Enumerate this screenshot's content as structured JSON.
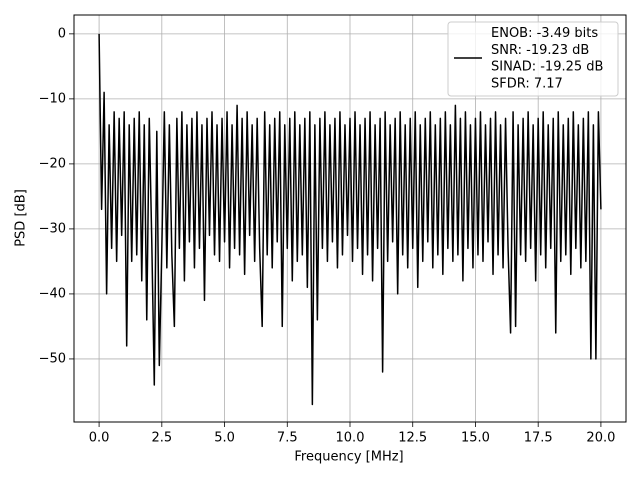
{
  "chart_data": {
    "type": "line",
    "xlabel": "Frequency [MHz]",
    "ylabel": "PSD [dB]",
    "xlim": [
      -1.0,
      21.0
    ],
    "ylim": [
      -59.7,
      2.9
    ],
    "xticks": [
      {
        "value": 0,
        "label": "0.0"
      },
      {
        "value": 2.5,
        "label": "2.5"
      },
      {
        "value": 5,
        "label": "5.0"
      },
      {
        "value": 7.5,
        "label": "7.5"
      },
      {
        "value": 10,
        "label": "10.0"
      },
      {
        "value": 12.5,
        "label": "12.5"
      },
      {
        "value": 15,
        "label": "15.0"
      },
      {
        "value": 17.5,
        "label": "17.5"
      },
      {
        "value": 20,
        "label": "20.0"
      }
    ],
    "yticks": [
      {
        "value": -50,
        "label": "−50"
      },
      {
        "value": -40,
        "label": "−40"
      },
      {
        "value": -30,
        "label": "−30"
      },
      {
        "value": -20,
        "label": "−20"
      },
      {
        "value": -10,
        "label": "−10"
      },
      0
    ],
    "grid": true,
    "legend": "upper right",
    "x": [
      0,
      0.1,
      0.2,
      0.3,
      0.4,
      0.5,
      0.6,
      0.7,
      0.8,
      0.9,
      1,
      1.1,
      1.2,
      1.3,
      1.4,
      1.5,
      1.6,
      1.7,
      1.8,
      1.9,
      2,
      2.1,
      2.2,
      2.3,
      2.4,
      2.5,
      2.6,
      2.7,
      2.8,
      2.9,
      3,
      3.1,
      3.2,
      3.3,
      3.4,
      3.5,
      3.6,
      3.7,
      3.8,
      3.9,
      4,
      4.1,
      4.2,
      4.3,
      4.4,
      4.5,
      4.6,
      4.7,
      4.8,
      4.9,
      5,
      5.1,
      5.2,
      5.3,
      5.4,
      5.5,
      5.6,
      5.7,
      5.8,
      5.9,
      6,
      6.1,
      6.2,
      6.3,
      6.4,
      6.5,
      6.6,
      6.7,
      6.8,
      6.9,
      7,
      7.1,
      7.2,
      7.3,
      7.4,
      7.5,
      7.6,
      7.7,
      7.8,
      7.9,
      8,
      8.1,
      8.2,
      8.3,
      8.4,
      8.5,
      8.6,
      8.7,
      8.8,
      8.9,
      9,
      9.1,
      9.2,
      9.3,
      9.4,
      9.5,
      9.6,
      9.7,
      9.8,
      9.9,
      10,
      10.1,
      10.2,
      10.3,
      10.4,
      10.5,
      10.6,
      10.7,
      10.8,
      10.9,
      11,
      11.1,
      11.2,
      11.3,
      11.4,
      11.5,
      11.6,
      11.7,
      11.8,
      11.9,
      12,
      12.1,
      12.2,
      12.3,
      12.4,
      12.5,
      12.6,
      12.7,
      12.8,
      12.9,
      13,
      13.1,
      13.2,
      13.3,
      13.4,
      13.5,
      13.6,
      13.7,
      13.8,
      13.9,
      14,
      14.1,
      14.2,
      14.3,
      14.4,
      14.5,
      14.6,
      14.7,
      14.8,
      14.9,
      15,
      15.1,
      15.2,
      15.3,
      15.4,
      15.5,
      15.6,
      15.7,
      15.8,
      15.9,
      16,
      16.1,
      16.2,
      16.3,
      16.4,
      16.5,
      16.6,
      16.7,
      16.8,
      16.9,
      17,
      17.1,
      17.2,
      17.3,
      17.4,
      17.5,
      17.6,
      17.7,
      17.8,
      17.9,
      18,
      18.1,
      18.2,
      18.3,
      18.4,
      18.5,
      18.6,
      18.7,
      18.8,
      18.9,
      19,
      19.1,
      19.2,
      19.3,
      19.4,
      19.5,
      19.6,
      19.7,
      19.8,
      19.9,
      20
    ],
    "series": [
      {
        "name": "ENOB: -3.49 bits\nSNR: -19.23 dB\nSINAD: -19.25 dB\nSFDR: 7.17",
        "color": "#000000",
        "values": [
          0,
          -27,
          -9,
          -40,
          -14,
          -33,
          -12,
          -35,
          -13,
          -31,
          -12,
          -48,
          -14,
          -35,
          -13,
          -34,
          -12,
          -38,
          -14,
          -44,
          -13,
          -32,
          -54,
          -15,
          -51,
          -33,
          -12,
          -36,
          -14,
          -34,
          -45,
          -13,
          -33,
          -12,
          -38,
          -14,
          -32,
          -13,
          -36,
          -12,
          -33,
          -14,
          -41,
          -13,
          -31,
          -12,
          -34,
          -14,
          -35,
          -13,
          -32,
          -12,
          -36,
          -14,
          -33,
          -11,
          -34,
          -13,
          -37,
          -12,
          -31,
          -14,
          -35,
          -13,
          -33,
          -45,
          -12,
          -34,
          -14,
          -36,
          -13,
          -32,
          -12,
          -45,
          -14,
          -33,
          -13,
          -38,
          -12,
          -35,
          -14,
          -34,
          -13,
          -39,
          -12,
          -57,
          -14,
          -44,
          -13,
          -33,
          -12,
          -35,
          -14,
          -32,
          -13,
          -36,
          -12,
          -34,
          -14,
          -31,
          -13,
          -35,
          -12,
          -33,
          -14,
          -37,
          -13,
          -34,
          -12,
          -38,
          -14,
          -33,
          -13,
          -52,
          -12,
          -35,
          -14,
          -32,
          -13,
          -40,
          -12,
          -34,
          -14,
          -36,
          -13,
          -33,
          -12,
          -39,
          -14,
          -35,
          -13,
          -32,
          -12,
          -36,
          -14,
          -34,
          -13,
          -37,
          -12,
          -33,
          -14,
          -35,
          -11,
          -34,
          -13,
          -38,
          -12,
          -33,
          -14,
          -36,
          -13,
          -34,
          -12,
          -35,
          -14,
          -32,
          -13,
          -37,
          -12,
          -34,
          -14,
          -36,
          -13,
          -33,
          -46,
          -12,
          -45,
          -14,
          -34,
          -13,
          -35,
          -12,
          -33,
          -14,
          -38,
          -13,
          -34,
          -12,
          -36,
          -14,
          -33,
          -13,
          -46,
          -12,
          -35,
          -14,
          -34,
          -13,
          -37,
          -12,
          -33,
          -14,
          -36,
          -13,
          -35,
          -12,
          -50,
          -14,
          -50,
          -12,
          -27
        ]
      }
    ]
  }
}
